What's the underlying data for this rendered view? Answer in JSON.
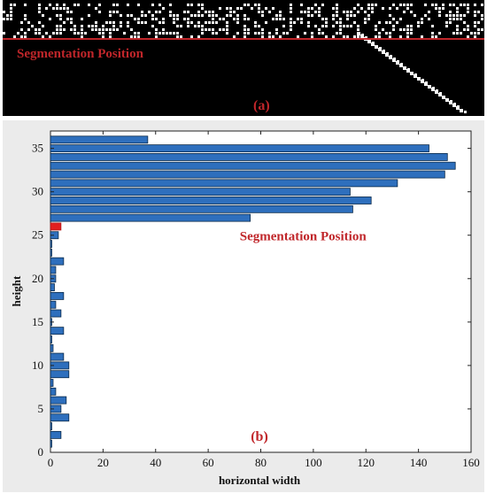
{
  "panel_a": {
    "annotation": "Segmentation Position",
    "label": "(a)",
    "colors": {
      "background": "#000000",
      "pixels": "#ffffff",
      "line": "#c0262a"
    }
  },
  "chart_data": {
    "type": "bar",
    "orientation": "horizontal",
    "xlabel": "horizontal width",
    "ylabel": "height",
    "xlim": [
      0,
      160
    ],
    "ylim": [
      0,
      37
    ],
    "xticks": [
      0,
      20,
      40,
      60,
      80,
      100,
      120,
      140,
      160
    ],
    "yticks": [
      0,
      5,
      10,
      15,
      20,
      25,
      30,
      35
    ],
    "grid": false,
    "annotation": "Segmentation Position",
    "panel_label": "(b)",
    "highlight_height": 26,
    "colors": {
      "bar": "#2e6fbd",
      "highlight": "#e32020",
      "annotation": "#c0262a"
    },
    "heights": [
      1,
      2,
      3,
      4,
      5,
      6,
      7,
      8,
      9,
      10,
      11,
      12,
      13,
      14,
      15,
      16,
      17,
      18,
      19,
      20,
      21,
      22,
      23,
      24,
      25,
      26,
      27,
      28,
      29,
      30,
      31,
      32,
      33,
      34,
      35,
      36
    ],
    "values": [
      0.5,
      4,
      0.5,
      7,
      4,
      6,
      2,
      1,
      7,
      7,
      5,
      1,
      0.5,
      5,
      0.5,
      4,
      2,
      5,
      1.5,
      2,
      2,
      5,
      0.5,
      0.5,
      3,
      4,
      76,
      115,
      122,
      114,
      132,
      150,
      154,
      151,
      144,
      37
    ]
  }
}
